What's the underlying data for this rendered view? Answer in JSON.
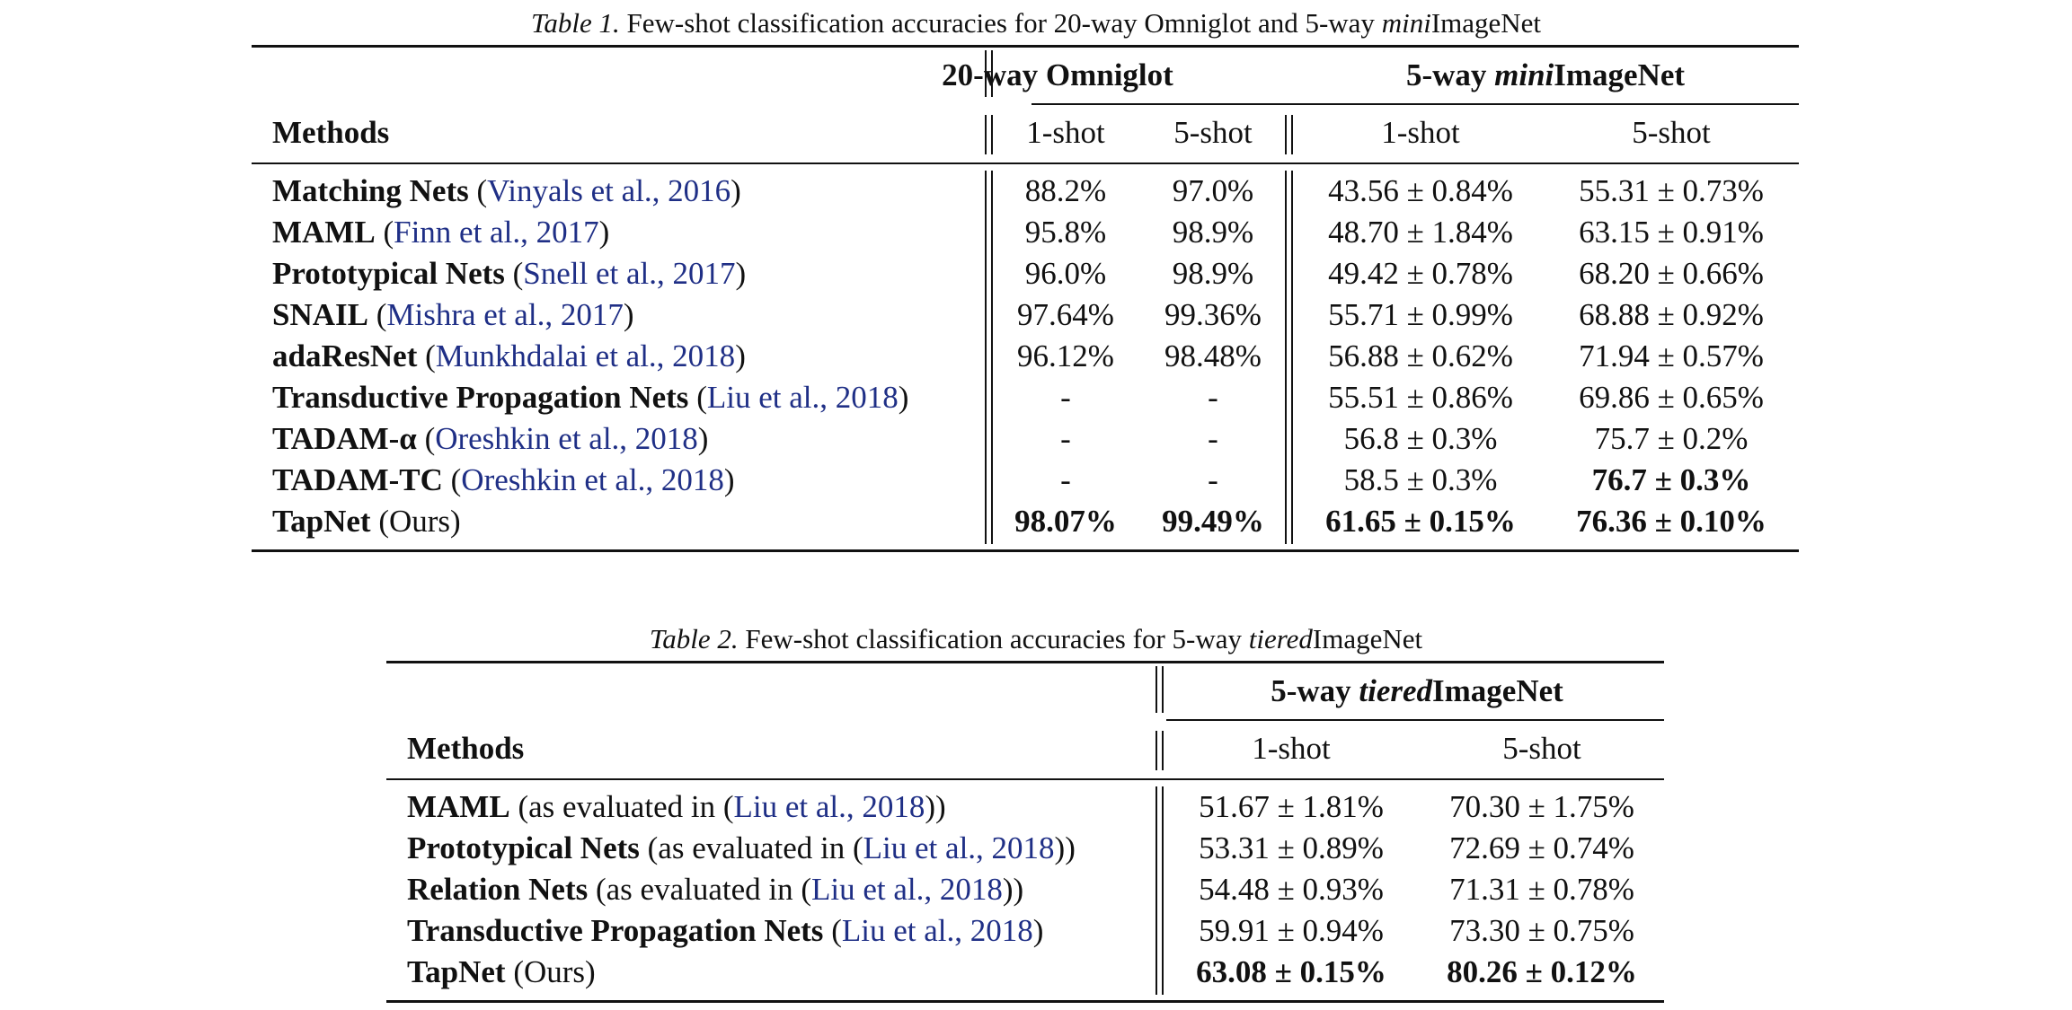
{
  "table1": {
    "caption_label": "Table 1.",
    "caption_pre": "Few-shot classification accuracies for 20-way Omniglot and 5-way ",
    "caption_ital": "mini",
    "caption_post": "ImageNet",
    "methods_header": "Methods",
    "group1_header": "20-way Omniglot",
    "group2_pre": "5-way ",
    "group2_ital": "mini",
    "group2_post": "ImageNet",
    "sub1": "1-shot",
    "sub2": "5-shot",
    "sub3": "1-shot",
    "sub4": "5-shot",
    "rows": [
      {
        "name": "Matching Nets",
        "open": " (",
        "cite": "Vinyals et al., 2016",
        "close": ")",
        "o1": "88.2%",
        "o5": "97.0%",
        "m1": "43.56 ± 0.84%",
        "m5": "55.31 ± 0.73%"
      },
      {
        "name": "MAML",
        "open": " (",
        "cite": "Finn et al., 2017",
        "close": ")",
        "o1": "95.8%",
        "o5": "98.9%",
        "m1": "48.70 ± 1.84%",
        "m5": "63.15 ± 0.91%"
      },
      {
        "name": "Prototypical Nets",
        "open": " (",
        "cite": "Snell et al., 2017",
        "close": ")",
        "o1": "96.0%",
        "o5": "98.9%",
        "m1": "49.42 ± 0.78%",
        "m5": "68.20 ± 0.66%"
      },
      {
        "name": "SNAIL",
        "open": " (",
        "cite": "Mishra et al., 2017",
        "close": ")",
        "o1": "97.64%",
        "o5": "99.36%",
        "m1": "55.71 ± 0.99%",
        "m5": "68.88 ± 0.92%"
      },
      {
        "name": "adaResNet",
        "open": " (",
        "cite": "Munkhdalai et al., 2018",
        "close": ")",
        "o1": "96.12%",
        "o5": "98.48%",
        "m1": "56.88 ± 0.62%",
        "m5": "71.94 ± 0.57%"
      },
      {
        "name": "Transductive Propagation Nets",
        "open": " (",
        "cite": "Liu et al., 2018",
        "close": ")",
        "o1": "-",
        "o5": "-",
        "m1": "55.51 ± 0.86%",
        "m5": "69.86 ± 0.65%"
      },
      {
        "name": "TADAM-α",
        "open": " (",
        "cite": "Oreshkin et al., 2018",
        "close": ")",
        "o1": "-",
        "o5": "-",
        "m1": "56.8 ± 0.3%",
        "m5": "75.7 ± 0.2%"
      },
      {
        "name": "TADAM-TC",
        "open": " (",
        "cite": "Oreshkin et al., 2018",
        "close": ")",
        "o1": "-",
        "o5": "-",
        "m1": "58.5 ± 0.3%",
        "m5": "76.7 ± 0.3%"
      },
      {
        "name": "TapNet",
        "open": " (Ours)",
        "cite": "",
        "close": "",
        "o1": "98.07%",
        "o5": "99.49%",
        "m1": "61.65 ± 0.15%",
        "m5": "76.36 ± 0.10%"
      }
    ]
  },
  "table2": {
    "caption_label": "Table 2.",
    "caption_pre": "Few-shot classification accuracies for 5-way ",
    "caption_ital": "tiered",
    "caption_post": "ImageNet",
    "methods_header": "Methods",
    "group_pre": "5-way ",
    "group_ital": "tiered",
    "group_post": "ImageNet",
    "sub1": "1-shot",
    "sub2": "5-shot",
    "rows": [
      {
        "name": "MAML",
        "open": " (as evaluated in (",
        "cite": "Liu et al., 2018",
        "close": "))",
        "t1": "51.67 ± 1.81%",
        "t5": "70.30 ± 1.75%"
      },
      {
        "name": "Prototypical Nets",
        "open": " (as evaluated in (",
        "cite": "Liu et al., 2018",
        "close": "))",
        "t1": "53.31 ± 0.89%",
        "t5": "72.69 ± 0.74%"
      },
      {
        "name": "Relation Nets",
        "open": " (as evaluated in (",
        "cite": "Liu et al., 2018",
        "close": "))",
        "t1": "54.48 ± 0.93%",
        "t5": "71.31 ± 0.78%"
      },
      {
        "name": "Transductive Propagation Nets",
        "open": " (",
        "cite": "Liu et al., 2018",
        "close": ")",
        "t1": "59.91 ± 0.94%",
        "t5": "73.30 ± 0.75%"
      },
      {
        "name": "TapNet",
        "open": " (Ours)",
        "cite": "",
        "close": "",
        "t1": "63.08 ± 0.15%",
        "t5": "80.26 ± 0.12%"
      }
    ]
  }
}
